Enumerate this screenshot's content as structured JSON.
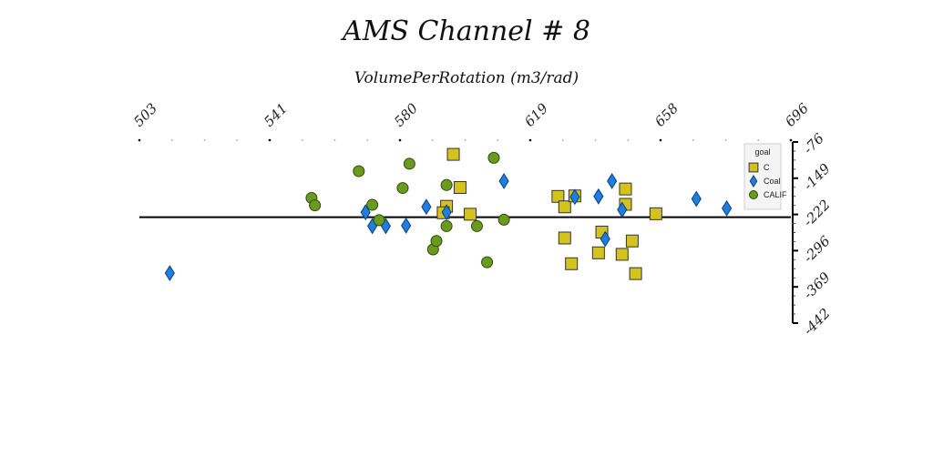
{
  "chart_data": {
    "type": "scatter",
    "title": "AMS Channel # 8",
    "xlabel": "VolumePerRotation (m3/rad)",
    "ylabel": "",
    "xlim": [
      503,
      696
    ],
    "ylim": [
      -442,
      -76
    ],
    "x_ticks": [
      "503",
      "541",
      "580",
      "619",
      "658",
      "696"
    ],
    "y_ticks": [
      "-76",
      "-149",
      "-222",
      "-296",
      "-369",
      "-442"
    ],
    "baseline_y": -228,
    "grid": false,
    "legend": {
      "title": "goal",
      "position": "top-right"
    },
    "series": [
      {
        "name": "C",
        "marker": "square",
        "color": "#d4c21e",
        "points": [
          [
            596,
            -101
          ],
          [
            601,
            -222
          ],
          [
            594,
            -206
          ],
          [
            598,
            -168
          ],
          [
            627,
            -186
          ],
          [
            629,
            -270
          ],
          [
            640,
            -258
          ],
          [
            631,
            -322
          ],
          [
            647,
            -171
          ],
          [
            629,
            -207
          ],
          [
            639,
            -300
          ],
          [
            646,
            -303
          ],
          [
            650,
            -342
          ],
          [
            632,
            -185
          ],
          [
            647,
            -202
          ],
          [
            649,
            -276
          ],
          [
            656,
            -221
          ],
          [
            593,
            -219
          ]
        ]
      },
      {
        "name": "Coal",
        "marker": "diamond",
        "color": "#1e7fe0",
        "points": [
          [
            512,
            -341
          ],
          [
            570,
            -218
          ],
          [
            572,
            -246
          ],
          [
            576,
            -246
          ],
          [
            582,
            -245
          ],
          [
            588,
            -207
          ],
          [
            594,
            -218
          ],
          [
            611,
            -155
          ],
          [
            632,
            -187
          ],
          [
            639,
            -186
          ],
          [
            643,
            -155
          ],
          [
            646,
            -213
          ],
          [
            668,
            -191
          ],
          [
            677,
            -210
          ],
          [
            641,
            -272
          ]
        ]
      },
      {
        "name": "CALIF",
        "marker": "circle",
        "color": "#6a9a1e",
        "points": [
          [
            554,
            -189
          ],
          [
            555,
            -204
          ],
          [
            568,
            -135
          ],
          [
            572,
            -203
          ],
          [
            574,
            -234
          ],
          [
            581,
            -169
          ],
          [
            583,
            -120
          ],
          [
            590,
            -293
          ],
          [
            591,
            -276
          ],
          [
            594,
            -246
          ],
          [
            594,
            -163
          ],
          [
            603,
            -246
          ],
          [
            606,
            -319
          ],
          [
            608,
            -108
          ],
          [
            611,
            -233
          ],
          [
            686,
            -200
          ]
        ]
      }
    ]
  }
}
